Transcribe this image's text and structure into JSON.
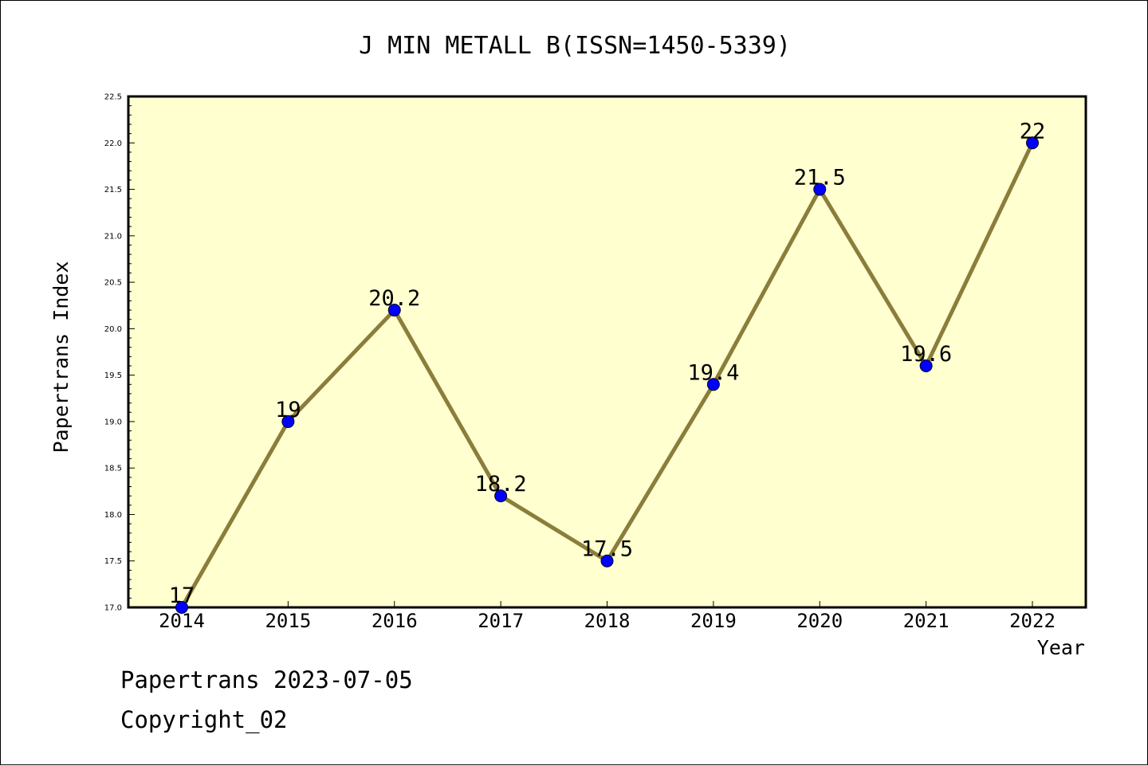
{
  "chart_data": {
    "type": "line",
    "title": "J MIN METALL B(ISSN=1450-5339)",
    "xlabel": "Year",
    "ylabel": "Papertrans Index",
    "categories": [
      "2014",
      "2015",
      "2016",
      "2017",
      "2018",
      "2019",
      "2020",
      "2021",
      "2022"
    ],
    "series": [
      {
        "values": [
          17,
          19,
          20.2,
          18.2,
          17.5,
          19.4,
          21.5,
          19.6,
          22
        ],
        "data_labels": [
          "17",
          "19",
          "20.2",
          "18.2",
          "17.5",
          "19.4",
          "21.5",
          "19.6",
          "22"
        ]
      }
    ],
    "ylim": [
      17.0,
      22.5
    ],
    "yticks": [
      "17.0",
      "17.5",
      "18.0",
      "18.5",
      "19.0",
      "19.5",
      "20.0",
      "20.5",
      "21.0",
      "21.5",
      "22.0",
      "22.5"
    ],
    "grid": false,
    "colors": {
      "plot_background": "#ffffd0",
      "line": "#8b7d3a",
      "marker": "#0000ff"
    }
  },
  "footer": {
    "line1": "Papertrans 2023-07-05",
    "line2": "Copyright_02"
  }
}
